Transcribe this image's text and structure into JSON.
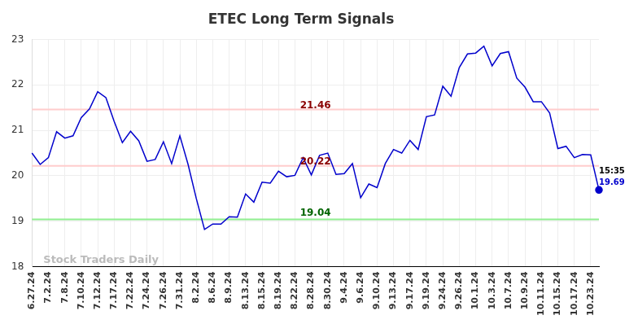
{
  "chart_data": {
    "type": "line",
    "title": "ETEC Long Term Signals",
    "categories": [
      "6.27.24",
      null,
      "7.2.24",
      null,
      "7.8.24",
      null,
      "7.10.24",
      null,
      "7.12.24",
      null,
      "7.17.24",
      null,
      "7.22.24",
      null,
      "7.24.24",
      null,
      "7.26.24",
      null,
      "7.31.24",
      null,
      "8.2.24",
      null,
      "8.6.24",
      null,
      "8.9.24",
      null,
      "8.13.24",
      null,
      "8.15.24",
      null,
      "8.19.24",
      null,
      "8.22.24",
      null,
      "8.28.24",
      null,
      "8.30.24",
      null,
      "9.4.24",
      null,
      "9.6.24",
      null,
      "9.10.24",
      null,
      "9.13.24",
      null,
      "9.17.24",
      null,
      "9.19.24",
      null,
      "9.24.24",
      null,
      "9.26.24",
      null,
      "10.1.24",
      null,
      "10.3.24",
      null,
      "10.7.24",
      null,
      "10.9.24",
      null,
      "10.11.24",
      null,
      "10.15.24",
      null,
      "10.17.24",
      null,
      "10.23.24",
      null
    ],
    "values": [
      20.5,
      20.25,
      20.4,
      20.97,
      20.83,
      20.88,
      21.28,
      21.47,
      21.85,
      21.72,
      21.2,
      20.73,
      20.98,
      20.77,
      20.32,
      20.36,
      20.75,
      20.27,
      20.88,
      20.25,
      19.5,
      18.82,
      18.94,
      18.94,
      19.1,
      19.09,
      19.6,
      19.42,
      19.86,
      19.84,
      20.1,
      19.98,
      20.01,
      20.4,
      20.02,
      20.45,
      20.5,
      20.03,
      20.05,
      20.27,
      19.52,
      19.82,
      19.74,
      20.27,
      20.58,
      20.5,
      20.78,
      20.58,
      21.3,
      21.34,
      21.97,
      21.75,
      22.38,
      22.68,
      22.7,
      22.85,
      22.42,
      22.69,
      22.73,
      22.15,
      21.95,
      21.63,
      21.63,
      21.38,
      20.6,
      20.65,
      20.4,
      20.47,
      20.46,
      19.69
    ],
    "color": "#0000cc",
    "ylim": [
      18,
      23
    ],
    "yticks": [
      18,
      19,
      20,
      21,
      22,
      23
    ],
    "grid": true,
    "annotations": [
      {
        "value": 21.46,
        "label": "21.46",
        "color": "#ffcccc",
        "label_color": "#8b0000"
      },
      {
        "value": 20.22,
        "label": "20.22",
        "color": "#ffcccc",
        "label_color": "#8b0000"
      },
      {
        "value": 19.04,
        "label": "19.04",
        "color": "#90ee90",
        "label_color": "#006400"
      }
    ],
    "end_label": "15:35",
    "watermark": "Stock Traders Daily"
  }
}
